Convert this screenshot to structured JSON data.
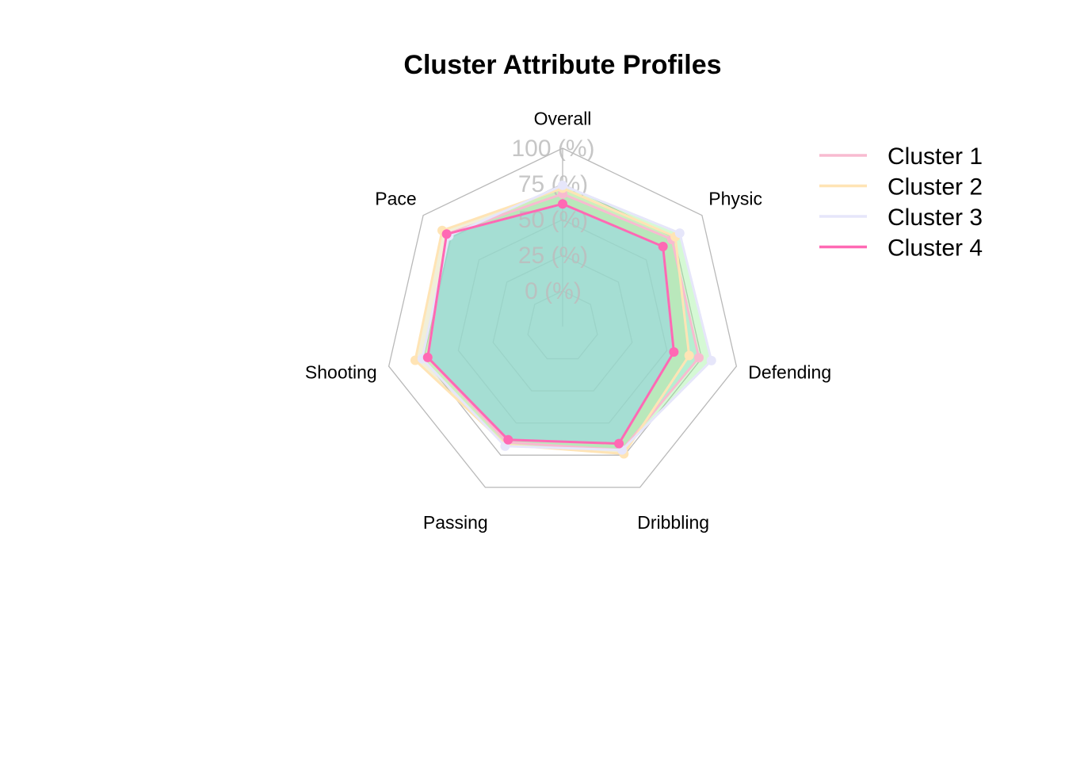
{
  "chart_data": {
    "type": "radar",
    "title": "Cluster Attribute Profiles",
    "axes": [
      "Overall",
      "Physic",
      "Defending",
      "Dribbling",
      "Passing",
      "Shooting",
      "Pace"
    ],
    "grid_labels": [
      "0 (%)",
      "25 (%)",
      "50 (%)",
      "75 (%)",
      "100 (%)"
    ],
    "range": [
      0,
      100
    ],
    "legend_position": "top-right",
    "series": [
      {
        "name": "Cluster 1",
        "line_color": "#f8bbd0",
        "fill_color": "#7fd3f0",
        "values": [
          68,
          73,
          73,
          71,
          65,
          72,
          79
        ]
      },
      {
        "name": "Cluster 2",
        "line_color": "#ffe4b5",
        "fill_color": "#d9d49a",
        "values": [
          72,
          76,
          66,
          74,
          67,
          81,
          83
        ]
      },
      {
        "name": "Cluster 3",
        "line_color": "#e6e6fa",
        "fill_color": "#90ee90",
        "values": [
          74,
          80,
          82,
          71,
          68,
          76,
          77
        ]
      },
      {
        "name": "Cluster 4",
        "line_color": "#ff69b4",
        "fill_color": "#87cefa",
        "values": [
          61,
          65,
          55,
          66,
          63,
          72,
          79
        ]
      }
    ]
  }
}
